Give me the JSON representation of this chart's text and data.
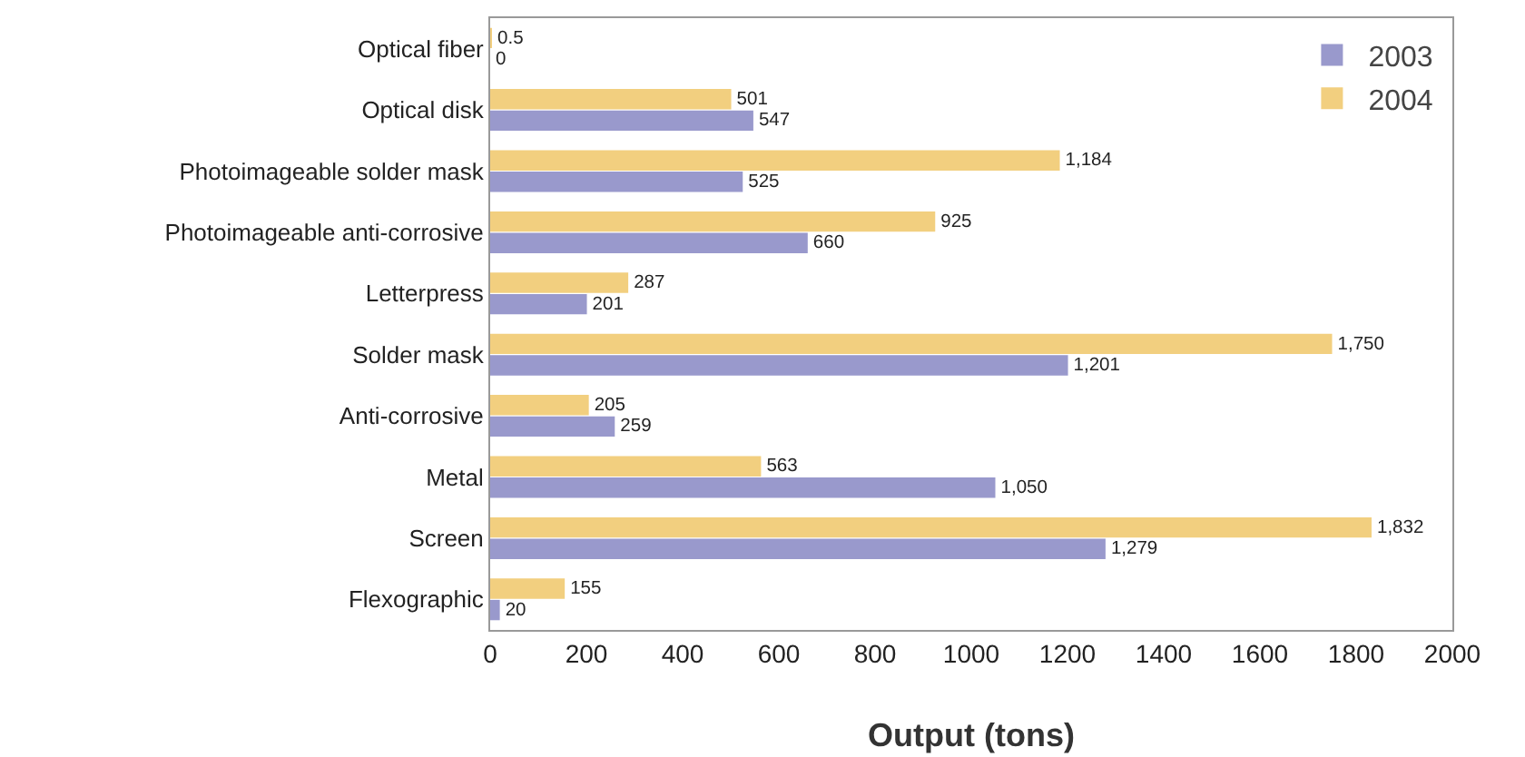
{
  "chart_data": {
    "type": "bar",
    "orientation": "horizontal",
    "xlabel": "Output (tons)",
    "categories": [
      "Optical fiber",
      "Optical disk",
      "Photoimageable solder mask",
      "Photoimageable anti-corrosive",
      "Letterpress",
      "Solder mask",
      "Anti-corrosive",
      "Metal",
      "Screen",
      "Flexographic"
    ],
    "series": [
      {
        "name": "2003",
        "color": "#9999cc",
        "values": [
          0,
          547,
          525,
          660,
          201,
          1201,
          259,
          1050,
          1279,
          20
        ],
        "value_labels": [
          "0",
          "547",
          "525",
          "660",
          "201",
          "1,201",
          "259",
          "1,050",
          "1,279",
          "20"
        ]
      },
      {
        "name": "2004",
        "color": "#f2cf7f",
        "values": [
          0.5,
          501,
          1184,
          925,
          287,
          1750,
          205,
          563,
          1832,
          155
        ],
        "value_labels": [
          "0.5",
          "501",
          "1,184",
          "925",
          "287",
          "1,750",
          "205",
          "563",
          "1,832",
          "155"
        ]
      }
    ],
    "xlim": [
      0,
      2000
    ],
    "xticks": [
      0,
      200,
      400,
      600,
      800,
      1000,
      1200,
      1400,
      1600,
      1800,
      2000
    ],
    "legend": "top right",
    "grid": false
  }
}
